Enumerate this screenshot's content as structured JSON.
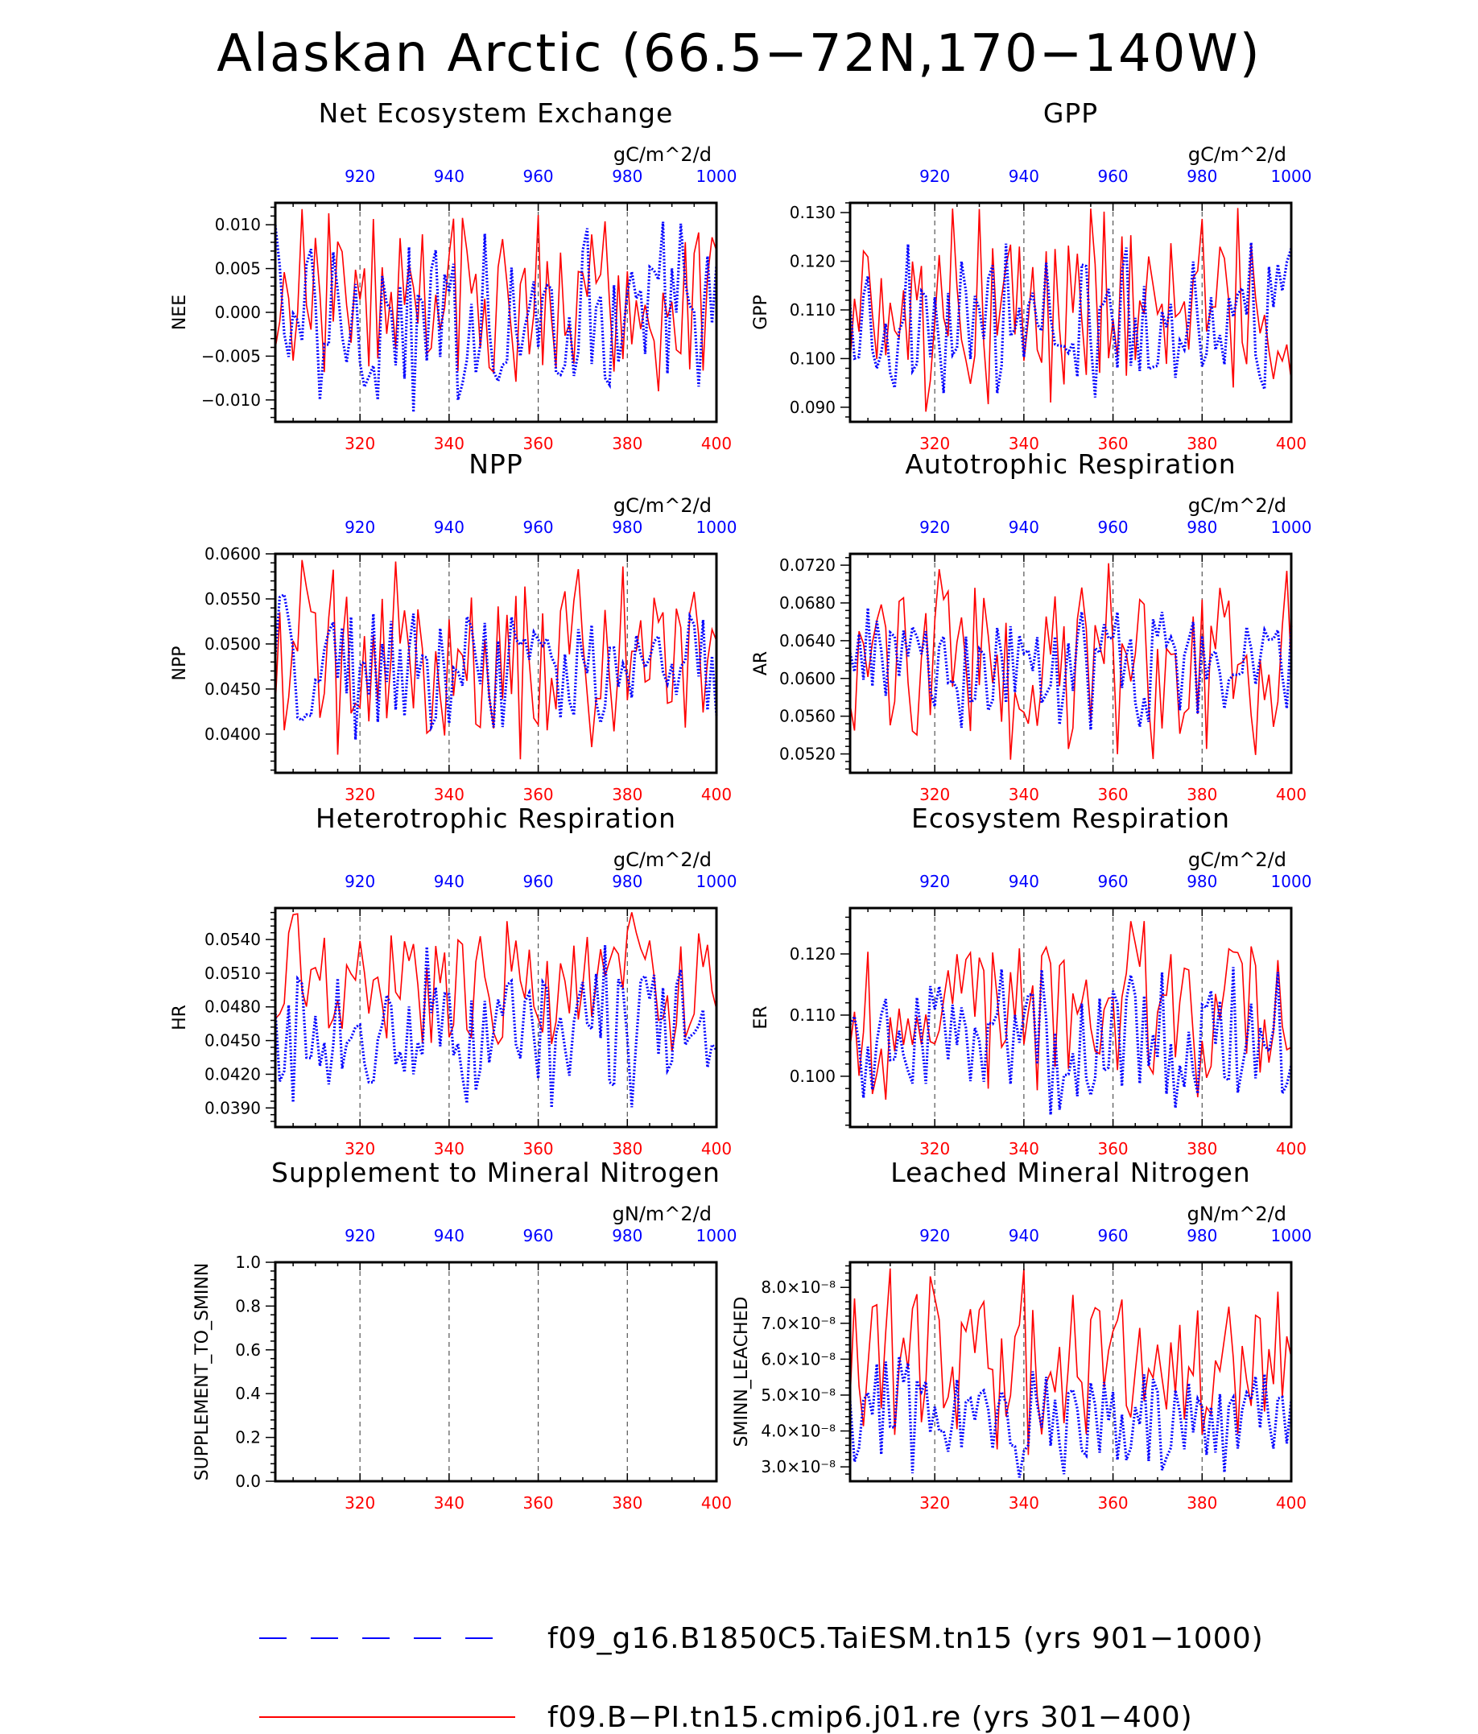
{
  "title": "Alaskan Arctic (66.5−72N,170−140W)",
  "colors": {
    "series_blue": "#0000ff",
    "series_red": "#ff0000",
    "axes": "#000000",
    "grid": "#555555"
  },
  "legend": {
    "items": [
      {
        "label": "f09_g16.B1850C5.TaiESM.tn15 (yrs 901−1000)",
        "color": "#0000ff",
        "style": "dashed"
      },
      {
        "label": "f09.B−PI.tn15.cmip6.j01.re (yrs 301−400)",
        "color": "#ff0000",
        "style": "solid"
      }
    ]
  },
  "chart_data": [
    {
      "type": "line",
      "title": "Net Ecosystem Exchange",
      "ylabel": "NEE",
      "units": "gC/m^2/d",
      "x_bottom": {
        "range": [
          301,
          400
        ],
        "ticks": [
          "320",
          "340",
          "360",
          "380",
          "400"
        ],
        "color": "#ff0000"
      },
      "x_top": {
        "range": [
          901,
          1000
        ],
        "ticks": [
          "920",
          "940",
          "960",
          "980",
          "1000"
        ],
        "color": "#0000ff"
      },
      "ylim": [
        -0.0125,
        0.0125
      ],
      "yticks": [
        "0.010",
        "0.005",
        "0.000",
        "−0.005",
        "−0.010"
      ],
      "ytick_values": [
        0.01,
        0.005,
        0,
        -0.005,
        -0.01
      ],
      "grid": "vertical dashed at 320,340,360,380",
      "series": [
        {
          "color": "#0000ff",
          "style": "dotted",
          "values": []
        },
        {
          "color": "#ff0000",
          "style": "solid",
          "values": []
        }
      ]
    },
    {
      "type": "line",
      "title": "GPP",
      "ylabel": "GPP",
      "units": "gC/m^2/d",
      "x_bottom": {
        "range": [
          301,
          400
        ],
        "ticks": [
          "320",
          "340",
          "360",
          "380",
          "400"
        ]
      },
      "x_top": {
        "range": [
          901,
          1000
        ],
        "ticks": [
          "920",
          "940",
          "960",
          "980",
          "1000"
        ]
      },
      "ylim": [
        0.087,
        0.132
      ],
      "yticks": [
        "0.130",
        "0.120",
        "0.110",
        "0.100",
        "0.090"
      ],
      "ytick_values": [
        0.13,
        0.12,
        0.11,
        0.1,
        0.09
      ],
      "series": [
        {
          "color": "#0000ff",
          "style": "dotted",
          "values": []
        },
        {
          "color": "#ff0000",
          "style": "solid",
          "values": []
        }
      ]
    },
    {
      "type": "line",
      "title": "NPP",
      "ylabel": "NPP",
      "units": "gC/m^2/d",
      "x_bottom": {
        "range": [
          301,
          400
        ],
        "ticks": [
          "320",
          "340",
          "360",
          "380",
          "400"
        ]
      },
      "x_top": {
        "range": [
          901,
          1000
        ],
        "ticks": [
          "920",
          "940",
          "960",
          "980",
          "1000"
        ]
      },
      "ylim": [
        0.0357,
        0.06
      ],
      "yticks": [
        "0.0600",
        "0.0550",
        "0.0500",
        "0.0450",
        "0.0400"
      ],
      "ytick_values": [
        0.06,
        0.055,
        0.05,
        0.045,
        0.04
      ],
      "series": [
        {
          "color": "#0000ff",
          "style": "dotted",
          "values": []
        },
        {
          "color": "#ff0000",
          "style": "solid",
          "values": []
        }
      ]
    },
    {
      "type": "line",
      "title": "Autotrophic Respiration",
      "ylabel": "AR",
      "units": "gC/m^2/d",
      "x_bottom": {
        "range": [
          301,
          400
        ],
        "ticks": [
          "320",
          "340",
          "360",
          "380",
          "400"
        ]
      },
      "x_top": {
        "range": [
          901,
          1000
        ],
        "ticks": [
          "920",
          "940",
          "960",
          "980",
          "1000"
        ]
      },
      "ylim": [
        0.05,
        0.0732
      ],
      "yticks": [
        "0.0720",
        "0.0680",
        "0.0640",
        "0.0600",
        "0.0560",
        "0.0520"
      ],
      "ytick_values": [
        0.072,
        0.068,
        0.064,
        0.06,
        0.056,
        0.052
      ],
      "series": [
        {
          "color": "#0000ff",
          "style": "dotted",
          "values": []
        },
        {
          "color": "#ff0000",
          "style": "solid",
          "values": []
        }
      ]
    },
    {
      "type": "line",
      "title": "Heterotrophic Respiration",
      "ylabel": "HR",
      "units": "gC/m^2/d",
      "x_bottom": {
        "range": [
          301,
          400
        ],
        "ticks": [
          "320",
          "340",
          "360",
          "380",
          "400"
        ]
      },
      "x_top": {
        "range": [
          901,
          1000
        ],
        "ticks": [
          "920",
          "940",
          "960",
          "980",
          "1000"
        ]
      },
      "ylim": [
        0.0373,
        0.0568
      ],
      "yticks": [
        "0.0540",
        "0.0510",
        "0.0480",
        "0.0450",
        "0.0420",
        "0.0390"
      ],
      "ytick_values": [
        0.054,
        0.051,
        0.048,
        0.045,
        0.042,
        0.039
      ],
      "series": [
        {
          "color": "#0000ff",
          "style": "dotted",
          "values": []
        },
        {
          "color": "#ff0000",
          "style": "solid",
          "values": []
        }
      ]
    },
    {
      "type": "line",
      "title": "Ecosystem Respiration",
      "ylabel": "ER",
      "units": "gC/m^2/d",
      "x_bottom": {
        "range": [
          301,
          400
        ],
        "ticks": [
          "320",
          "340",
          "360",
          "380",
          "400"
        ]
      },
      "x_top": {
        "range": [
          901,
          1000
        ],
        "ticks": [
          "920",
          "940",
          "960",
          "980",
          "1000"
        ]
      },
      "ylim": [
        0.0917,
        0.1275
      ],
      "yticks": [
        "0.120",
        "0.110",
        "0.100"
      ],
      "ytick_values": [
        0.12,
        0.11,
        0.1
      ],
      "series": [
        {
          "color": "#0000ff",
          "style": "dotted",
          "values": []
        },
        {
          "color": "#ff0000",
          "style": "solid",
          "values": []
        }
      ]
    },
    {
      "type": "line",
      "title": "Supplement to Mineral Nitrogen",
      "ylabel": "SUPPLEMENT_TO_SMINN",
      "units": "gN/m^2/d",
      "x_bottom": {
        "range": [
          301,
          400
        ],
        "ticks": [
          "320",
          "340",
          "360",
          "380",
          "400"
        ]
      },
      "x_top": {
        "range": [
          901,
          1000
        ],
        "ticks": [
          "920",
          "940",
          "960",
          "980",
          "1000"
        ]
      },
      "ylim": [
        0,
        1
      ],
      "yticks": [
        "1.0",
        "0.8",
        "0.6",
        "0.4",
        "0.2",
        "0.0"
      ],
      "ytick_values": [
        1,
        0.8,
        0.6,
        0.4,
        0.2,
        0
      ],
      "series": [
        {
          "color": "#0000ff",
          "style": "dotted",
          "values": []
        },
        {
          "color": "#ff0000",
          "style": "solid",
          "values": []
        }
      ]
    },
    {
      "type": "line",
      "title": "Leached Mineral Nitrogen",
      "ylabel": "SMINN_LEACHED",
      "units": "gN/m^2/d",
      "x_bottom": {
        "range": [
          301,
          400
        ],
        "ticks": [
          "320",
          "340",
          "360",
          "380",
          "400"
        ]
      },
      "x_top": {
        "range": [
          901,
          1000
        ],
        "ticks": [
          "920",
          "940",
          "960",
          "980",
          "1000"
        ]
      },
      "ylim": [
        2.6e-08,
        8.7e-08
      ],
      "yticks": [
        "8.0×10⁻⁸",
        "7.0×10⁻⁸",
        "6.0×10⁻⁸",
        "5.0×10⁻⁸",
        "4.0×10⁻⁸",
        "3.0×10⁻⁸"
      ],
      "ytick_values": [
        8e-08,
        7e-08,
        6e-08,
        5e-08,
        4e-08,
        3e-08
      ],
      "series": [
        {
          "color": "#0000ff",
          "style": "dotted",
          "values": []
        },
        {
          "color": "#ff0000",
          "style": "solid",
          "values": []
        }
      ]
    }
  ]
}
